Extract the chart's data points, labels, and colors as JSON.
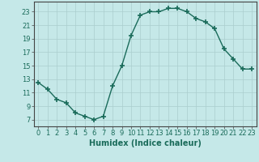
{
  "x": [
    0,
    1,
    2,
    3,
    4,
    5,
    6,
    7,
    8,
    9,
    10,
    11,
    12,
    13,
    14,
    15,
    16,
    17,
    18,
    19,
    20,
    21,
    22,
    23
  ],
  "y": [
    12.5,
    11.5,
    10.0,
    9.5,
    8.0,
    7.5,
    7.0,
    7.5,
    12.0,
    15.0,
    19.5,
    22.5,
    23.0,
    23.0,
    23.5,
    23.5,
    23.0,
    22.0,
    21.5,
    20.5,
    17.5,
    16.0,
    14.5,
    14.5
  ],
  "line_color": "#1a6b5a",
  "marker": "+",
  "marker_size": 4,
  "marker_lw": 1.2,
  "bg_color": "#c5e8e8",
  "grid_color": "#aacece",
  "xlabel": "Humidex (Indice chaleur)",
  "ylim": [
    6,
    24.5
  ],
  "xlim": [
    -0.5,
    23.5
  ],
  "yticks": [
    7,
    9,
    11,
    13,
    15,
    17,
    19,
    21,
    23
  ],
  "xticks": [
    0,
    1,
    2,
    3,
    4,
    5,
    6,
    7,
    8,
    9,
    10,
    11,
    12,
    13,
    14,
    15,
    16,
    17,
    18,
    19,
    20,
    21,
    22,
    23
  ],
  "xlabel_fontsize": 7,
  "tick_fontsize": 6,
  "line_width": 1.0
}
